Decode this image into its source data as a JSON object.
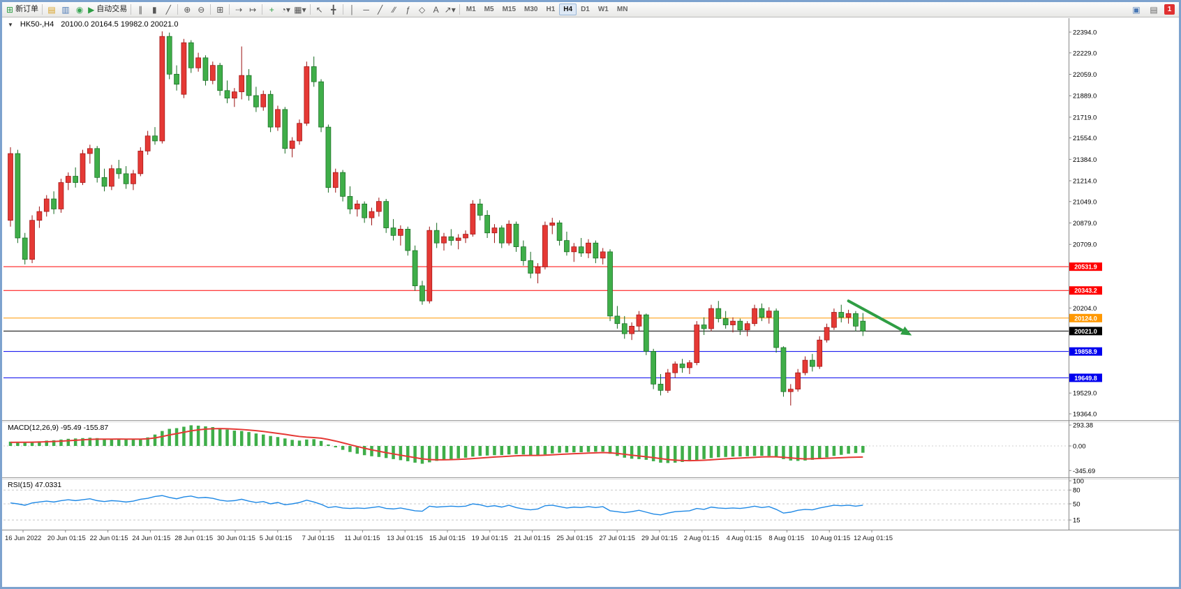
{
  "toolbar": {
    "new_order_label": "新订单",
    "auto_trading_label": "自动交易",
    "buttons": [
      {
        "name": "new-order-button",
        "glyph": "⊞",
        "color": "#2e9e44",
        "label": "新订单"
      },
      {
        "sep": true
      },
      {
        "name": "chart-profiles-button",
        "glyph": "▤",
        "color": "#d8a021"
      },
      {
        "name": "market-watch-button",
        "glyph": "▥",
        "color": "#4a78b5"
      },
      {
        "name": "navigator-button",
        "glyph": "◉",
        "color": "#3aa655"
      },
      {
        "name": "auto-trading-button",
        "glyph": "▶",
        "color": "#2e9e44",
        "label": "自动交易"
      },
      {
        "sep": true
      },
      {
        "name": "bar-chart-type-button",
        "glyph": "∥",
        "color": "#555555"
      },
      {
        "name": "candlestick-chart-type-button",
        "glyph": "▮",
        "color": "#555555"
      },
      {
        "name": "line-chart-type-button",
        "glyph": "╱",
        "color": "#555555"
      },
      {
        "sep": true
      },
      {
        "name": "zoom-in-button",
        "glyph": "⊕",
        "color": "#555555"
      },
      {
        "name": "zoom-out-button",
        "glyph": "⊖",
        "color": "#555555"
      },
      {
        "sep": true
      },
      {
        "name": "tile-windows-button",
        "glyph": "⊞",
        "color": "#555555"
      },
      {
        "sep": true
      },
      {
        "name": "auto-scroll-button",
        "glyph": "⇢",
        "color": "#555555"
      },
      {
        "name": "chart-shift-button",
        "glyph": "↦",
        "color": "#555555"
      },
      {
        "sep": true
      },
      {
        "name": "indicators-button",
        "glyph": "+",
        "color": "#2e9e44"
      },
      {
        "name": "periods-button",
        "glyph": "◔▾",
        "color": "#555555"
      },
      {
        "name": "templates-button",
        "glyph": "▦▾",
        "color": "#555555"
      },
      {
        "sep": true
      },
      {
        "name": "cursor-button",
        "glyph": "↖",
        "color": "#555555"
      },
      {
        "name": "crosshair-button",
        "glyph": "╋",
        "color": "#555555"
      },
      {
        "sep": true
      },
      {
        "name": "vertical-line-button",
        "glyph": "│",
        "color": "#555555"
      },
      {
        "name": "horizontal-line-button",
        "glyph": "─",
        "color": "#555555"
      },
      {
        "name": "trendline-button",
        "glyph": "╱",
        "color": "#555555"
      },
      {
        "name": "channel-button",
        "glyph": "∕∕",
        "color": "#555555"
      },
      {
        "name": "fibonacci-button",
        "glyph": "ƒ",
        "color": "#555555"
      },
      {
        "name": "shapes-button",
        "glyph": "◇",
        "color": "#555555"
      },
      {
        "name": "text-button",
        "glyph": "A",
        "color": "#555555"
      },
      {
        "name": "arrow-tools-button",
        "glyph": "↗▾",
        "color": "#555555"
      },
      {
        "sep": true
      }
    ],
    "timeframes": [
      "M1",
      "M5",
      "M15",
      "M30",
      "H1",
      "H4",
      "D1",
      "W1",
      "MN"
    ],
    "active_timeframe": "H4",
    "right_icons": [
      {
        "name": "chat-button",
        "glyph": "▣",
        "color": "#4a78b5"
      },
      {
        "name": "news-button",
        "glyph": "▤",
        "color": "#666666"
      }
    ],
    "notification_count": "1"
  },
  "chart_header": {
    "collapse_glyph": "▼",
    "symbol_period": "HK50-,H4",
    "ohlc": "20100.0 20164.5 19982.0 20021.0"
  },
  "indicator_labels": {
    "macd": "MACD(12,26,9) -95.49 -155.87",
    "rsi": "RSI(15) 47.0331"
  },
  "chart_data": {
    "type": "candlestick",
    "symbol": "HK50-",
    "period": "H4",
    "last_ohlc": {
      "open": 20100.0,
      "high": 20164.5,
      "low": 19982.0,
      "close": 20021.0
    },
    "up_color": "#e53935",
    "down_color": "#3fae49",
    "up_border": "#9b1010",
    "down_border": "#14691f",
    "price_axis": {
      "max": 22394.0,
      "min": 19364.0,
      "ticks": [
        "22394.0",
        "22229.0",
        "22059.0",
        "21889.0",
        "21719.0",
        "21554.0",
        "21384.0",
        "21214.0",
        "21049.0",
        "20879.0",
        "20709.0",
        "20204.0",
        "19529.0",
        "19364.0"
      ]
    },
    "level_lines": [
      {
        "price": 20531.9,
        "color": "#ff0000"
      },
      {
        "price": 20343.2,
        "color": "#ff0000"
      },
      {
        "price": 20124.0,
        "color": "#ff9800"
      },
      {
        "price": 20021.0,
        "color": "#000000"
      },
      {
        "price": 19858.9,
        "color": "#0000ee"
      },
      {
        "price": 19649.8,
        "color": "#0000ee"
      }
    ],
    "candles": [
      [
        20900,
        21480,
        20850,
        21430
      ],
      [
        21430,
        21460,
        20720,
        20760
      ],
      [
        20760,
        20800,
        20550,
        20590
      ],
      [
        20590,
        20940,
        20560,
        20900
      ],
      [
        20900,
        21010,
        20840,
        20970
      ],
      [
        20970,
        21100,
        20930,
        21070
      ],
      [
        21070,
        21130,
        20950,
        20990
      ],
      [
        20990,
        21230,
        20960,
        21200
      ],
      [
        21200,
        21280,
        21140,
        21250
      ],
      [
        21250,
        21320,
        21160,
        21200
      ],
      [
        21200,
        21460,
        21180,
        21430
      ],
      [
        21430,
        21500,
        21350,
        21470
      ],
      [
        21470,
        21490,
        21200,
        21240
      ],
      [
        21240,
        21310,
        21130,
        21170
      ],
      [
        21170,
        21340,
        21140,
        21310
      ],
      [
        21310,
        21380,
        21230,
        21270
      ],
      [
        21270,
        21330,
        21150,
        21190
      ],
      [
        21190,
        21300,
        21140,
        21270
      ],
      [
        21270,
        21480,
        21250,
        21450
      ],
      [
        21450,
        21610,
        21420,
        21570
      ],
      [
        21570,
        21640,
        21500,
        21530
      ],
      [
        21530,
        22400,
        21510,
        22360
      ],
      [
        22360,
        22390,
        22020,
        22060
      ],
      [
        22060,
        22130,
        21930,
        21980
      ],
      [
        21900,
        22340,
        21870,
        22310
      ],
      [
        22310,
        22330,
        22070,
        22110
      ],
      [
        22110,
        22230,
        22080,
        22190
      ],
      [
        22190,
        22210,
        21970,
        22010
      ],
      [
        22010,
        22160,
        21980,
        22130
      ],
      [
        22130,
        22150,
        21890,
        21930
      ],
      [
        21930,
        22010,
        21830,
        21870
      ],
      [
        21870,
        21950,
        21800,
        21920
      ],
      [
        21920,
        22280,
        21860,
        22050
      ],
      [
        22050,
        22100,
        21850,
        21890
      ],
      [
        21890,
        21960,
        21760,
        21800
      ],
      [
        21800,
        21930,
        21770,
        21900
      ],
      [
        21900,
        21930,
        21600,
        21640
      ],
      [
        21640,
        21810,
        21610,
        21780
      ],
      [
        21780,
        21800,
        21430,
        21470
      ],
      [
        21470,
        21560,
        21400,
        21530
      ],
      [
        21530,
        21700,
        21500,
        21670
      ],
      [
        21670,
        22160,
        21650,
        22120
      ],
      [
        22120,
        22200,
        21960,
        22000
      ],
      [
        22000,
        22020,
        21600,
        21640
      ],
      [
        21640,
        21660,
        21120,
        21160
      ],
      [
        21160,
        21310,
        21120,
        21280
      ],
      [
        21280,
        21300,
        21050,
        21090
      ],
      [
        21090,
        21170,
        20950,
        20990
      ],
      [
        20990,
        21060,
        20930,
        21030
      ],
      [
        21030,
        21050,
        20880,
        20920
      ],
      [
        20920,
        21000,
        20860,
        20970
      ],
      [
        20970,
        21080,
        20930,
        21050
      ],
      [
        21050,
        21070,
        20800,
        20840
      ],
      [
        20840,
        20910,
        20740,
        20780
      ],
      [
        20780,
        20860,
        20700,
        20830
      ],
      [
        20830,
        20850,
        20620,
        20660
      ],
      [
        20660,
        20700,
        20340,
        20380
      ],
      [
        20380,
        20420,
        20230,
        20260
      ],
      [
        20260,
        20850,
        20240,
        20820
      ],
      [
        20820,
        20880,
        20680,
        20720
      ],
      [
        20720,
        20800,
        20660,
        20770
      ],
      [
        20770,
        20830,
        20700,
        20740
      ],
      [
        20740,
        20790,
        20670,
        20760
      ],
      [
        20760,
        20820,
        20720,
        20790
      ],
      [
        20790,
        21060,
        20770,
        21030
      ],
      [
        21030,
        21070,
        20900,
        20940
      ],
      [
        20940,
        20980,
        20760,
        20800
      ],
      [
        20800,
        20870,
        20720,
        20840
      ],
      [
        20840,
        20860,
        20680,
        20720
      ],
      [
        20720,
        20900,
        20700,
        20870
      ],
      [
        20870,
        20890,
        20650,
        20690
      ],
      [
        20690,
        20740,
        20540,
        20580
      ],
      [
        20580,
        20650,
        20440,
        20480
      ],
      [
        20480,
        20560,
        20400,
        20530
      ],
      [
        20530,
        20890,
        20510,
        20860
      ],
      [
        20860,
        20920,
        20790,
        20880
      ],
      [
        20880,
        20900,
        20700,
        20740
      ],
      [
        20740,
        20810,
        20620,
        20650
      ],
      [
        20650,
        20720,
        20570,
        20690
      ],
      [
        20690,
        20760,
        20610,
        20640
      ],
      [
        20640,
        20750,
        20600,
        20720
      ],
      [
        20720,
        20740,
        20560,
        20600
      ],
      [
        20600,
        20680,
        20550,
        20650
      ],
      [
        20650,
        20670,
        20100,
        20140
      ],
      [
        20140,
        20220,
        20040,
        20080
      ],
      [
        20080,
        20140,
        19960,
        20000
      ],
      [
        20000,
        20090,
        19950,
        20060
      ],
      [
        20060,
        20180,
        20020,
        20150
      ],
      [
        20150,
        20160,
        19830,
        19860
      ],
      [
        19860,
        19880,
        19560,
        19600
      ],
      [
        19600,
        19680,
        19510,
        19550
      ],
      [
        19550,
        19720,
        19530,
        19690
      ],
      [
        19690,
        19780,
        19650,
        19760
      ],
      [
        19760,
        19800,
        19690,
        19730
      ],
      [
        19730,
        19790,
        19680,
        19770
      ],
      [
        19770,
        20100,
        19750,
        20070
      ],
      [
        20070,
        20130,
        19990,
        20040
      ],
      [
        20040,
        20230,
        20020,
        20200
      ],
      [
        20200,
        20260,
        20090,
        20120
      ],
      [
        20120,
        20180,
        20040,
        20070
      ],
      [
        20070,
        20130,
        20010,
        20100
      ],
      [
        20100,
        20120,
        19990,
        20030
      ],
      [
        20030,
        20100,
        19980,
        20080
      ],
      [
        20080,
        20230,
        20060,
        20200
      ],
      [
        20200,
        20240,
        20100,
        20130
      ],
      [
        20130,
        20210,
        20080,
        20180
      ],
      [
        20180,
        20200,
        19850,
        19890
      ],
      [
        19890,
        19900,
        19500,
        19540
      ],
      [
        19540,
        19600,
        19430,
        19560
      ],
      [
        19560,
        19720,
        19540,
        19690
      ],
      [
        19690,
        19820,
        19670,
        19790
      ],
      [
        19790,
        19840,
        19700,
        19740
      ],
      [
        19740,
        19980,
        19720,
        19950
      ],
      [
        19950,
        20080,
        19930,
        20050
      ],
      [
        20050,
        20200,
        20030,
        20170
      ],
      [
        20170,
        20230,
        20090,
        20130
      ],
      [
        20130,
        20190,
        20080,
        20160
      ],
      [
        20160,
        20180,
        20020,
        20060
      ],
      [
        20100,
        20164.5,
        19982.0,
        20021.0
      ]
    ],
    "macd": {
      "histogram_color": "#3fae49",
      "signal_color": "#e53935",
      "current_value": -95.49,
      "current_signal": -155.87,
      "ticks": [
        "293.38",
        "0.00",
        "-345.69"
      ],
      "values": [
        60,
        55,
        50,
        55,
        65,
        75,
        80,
        90,
        100,
        105,
        110,
        115,
        110,
        100,
        95,
        100,
        95,
        90,
        100,
        120,
        160,
        210,
        240,
        250,
        270,
        290,
        285,
        275,
        265,
        250,
        230,
        215,
        210,
        195,
        175,
        160,
        140,
        125,
        105,
        85,
        75,
        90,
        95,
        70,
        20,
        -20,
        -55,
        -85,
        -110,
        -130,
        -145,
        -155,
        -170,
        -185,
        -200,
        -215,
        -235,
        -250,
        -230,
        -210,
        -195,
        -185,
        -175,
        -165,
        -150,
        -140,
        -135,
        -130,
        -128,
        -120,
        -115,
        -120,
        -128,
        -130,
        -120,
        -105,
        -95,
        -92,
        -90,
        -88,
        -85,
        -82,
        -80,
        -110,
        -140,
        -165,
        -180,
        -185,
        -195,
        -215,
        -235,
        -240,
        -235,
        -225,
        -215,
        -200,
        -185,
        -170,
        -160,
        -155,
        -150,
        -148,
        -145,
        -140,
        -138,
        -140,
        -155,
        -185,
        -205,
        -210,
        -205,
        -195,
        -180,
        -160,
        -140,
        -125,
        -110,
        -100,
        -95.49
      ],
      "signal": [
        50,
        52,
        52,
        53,
        55,
        59,
        63,
        68,
        74,
        80,
        86,
        92,
        95,
        96,
        96,
        97,
        96,
        95,
        96,
        101,
        113,
        132,
        154,
        173,
        192,
        212,
        226,
        236,
        242,
        244,
        241,
        236,
        231,
        223,
        214,
        203,
        190,
        177,
        163,
        147,
        133,
        124,
        118,
        109,
        91,
        69,
        44,
        18,
        -8,
        -32,
        -55,
        -75,
        -94,
        -112,
        -130,
        -147,
        -164,
        -181,
        -191,
        -195,
        -195,
        -193,
        -189,
        -184,
        -178,
        -170,
        -163,
        -156,
        -151,
        -145,
        -139,
        -135,
        -133,
        -133,
        -130,
        -125,
        -119,
        -114,
        -109,
        -105,
        -101,
        -97,
        -93,
        -97,
        -105,
        -117,
        -130,
        -141,
        -152,
        -164,
        -178,
        -191,
        -200,
        -205,
        -207,
        -205,
        -201,
        -195,
        -188,
        -181,
        -175,
        -170,
        -165,
        -160,
        -155,
        -152,
        -153,
        -159,
        -168,
        -177,
        -182,
        -180,
        -177,
        -173,
        -169,
        -165,
        -161,
        -158,
        -155.87
      ]
    },
    "rsi": {
      "line_color": "#1e88e5",
      "current_value": 47.0331,
      "ticks": [
        "100",
        "80",
        "50",
        "15"
      ],
      "levels": [
        80,
        50,
        15
      ],
      "values": [
        52,
        50,
        47,
        52,
        54,
        56,
        54,
        57,
        59,
        57,
        59,
        61,
        57,
        55,
        57,
        56,
        54,
        56,
        60,
        62,
        66,
        68,
        64,
        61,
        65,
        67,
        63,
        64,
        62,
        58,
        56,
        57,
        60,
        56,
        53,
        55,
        50,
        53,
        48,
        50,
        53,
        58,
        54,
        49,
        42,
        44,
        41,
        40,
        41,
        40,
        42,
        44,
        40,
        39,
        41,
        38,
        35,
        34,
        45,
        43,
        44,
        45,
        44,
        45,
        50,
        48,
        44,
        46,
        43,
        47,
        42,
        39,
        37,
        39,
        46,
        47,
        44,
        41,
        43,
        42,
        44,
        42,
        44,
        35,
        33,
        31,
        33,
        36,
        32,
        28,
        26,
        30,
        33,
        34,
        35,
        40,
        38,
        43,
        41,
        40,
        41,
        40,
        42,
        45,
        42,
        44,
        38,
        30,
        32,
        36,
        38,
        37,
        41,
        44,
        47,
        46,
        47,
        45,
        47.03
      ]
    },
    "time_labels": [
      "16 Jun 2022",
      "20 Jun 01:15",
      "22 Jun 01:15",
      "24 Jun 01:15",
      "28 Jun 01:15",
      "30 Jun 01:15",
      "5 Jul 01:15",
      "7 Jul 01:15",
      "11 Jul 01:15",
      "13 Jul 01:15",
      "15 Jul 01:15",
      "19 Jul 01:15",
      "21 Jul 01:15",
      "25 Jul 01:15",
      "27 Jul 01:15",
      "29 Jul 01:15",
      "2 Aug 01:15",
      "4 Aug 01:15",
      "8 Aug 01:15",
      "10 Aug 01:15",
      "12 Aug 01:15"
    ],
    "arrow": {
      "color": "#2f9e44",
      "from_candle": 116,
      "from_price": 20260,
      "to_candle": 124,
      "to_price": 20010
    }
  }
}
